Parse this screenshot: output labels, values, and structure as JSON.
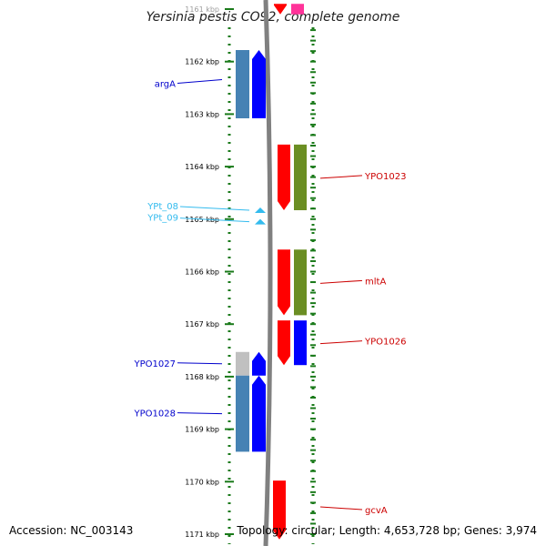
{
  "title": "Yersinia pestis CO92, complete genome",
  "footer": {
    "accession": "Accession: NC_003143",
    "topology": "Topology: circular; Length: 4,653,728 bp; Genes: 3,974"
  },
  "colors": {
    "scale_dots": "#1a7a1a",
    "backbone": "#808080",
    "blue_label": "#0000cc",
    "red_label": "#cc0000",
    "cyan_label": "#33bbee"
  },
  "scale": {
    "start_kbp": 1161,
    "end_kbp": 1171,
    "ticks": [
      {
        "kbp": 1161,
        "label": "1161 kbp"
      },
      {
        "kbp": 1162,
        "label": "1162 kbp"
      },
      {
        "kbp": 1163,
        "label": "1163 kbp"
      },
      {
        "kbp": 1164,
        "label": "1164 kbp"
      },
      {
        "kbp": 1165,
        "label": "1165 kbp"
      },
      {
        "kbp": 1166,
        "label": "1166 kbp"
      },
      {
        "kbp": 1167,
        "label": "1167 kbp"
      },
      {
        "kbp": 1168,
        "label": "1168 kbp"
      },
      {
        "kbp": 1169,
        "label": "1169 kbp"
      },
      {
        "kbp": 1170,
        "label": "1170 kbp"
      },
      {
        "kbp": 1171,
        "label": "1171 kbp"
      }
    ]
  },
  "features": [
    {
      "id": "f1",
      "strand": "forward",
      "start_kbp": 1160.9,
      "end_kbp": 1161.1,
      "color": "#ff0000",
      "kind": "gene"
    },
    {
      "id": "f2",
      "strand": "forward",
      "start_kbp": 1160.9,
      "end_kbp": 1161.1,
      "color": "#ff3399",
      "kind": "cds"
    },
    {
      "id": "argA",
      "strand": "reverse",
      "start_kbp": 1161.78,
      "end_kbp": 1163.08,
      "color": "#0000ff",
      "cds_color": "#4682b4",
      "label": "argA",
      "label_color": "#0000cc"
    },
    {
      "id": "YPO1023",
      "strand": "forward",
      "start_kbp": 1163.58,
      "end_kbp": 1164.83,
      "color": "#ff0000",
      "cds_color": "#6b8e23",
      "label": "YPO1023",
      "label_color": "#cc0000"
    },
    {
      "id": "mltA",
      "strand": "forward",
      "start_kbp": 1165.58,
      "end_kbp": 1166.83,
      "color": "#ff0000",
      "cds_color": "#6b8e23",
      "label": "mltA",
      "label_color": "#cc0000"
    },
    {
      "id": "YPO1026",
      "strand": "forward",
      "start_kbp": 1166.93,
      "end_kbp": 1167.78,
      "color": "#ff0000",
      "cds_color": "#0000ff",
      "label": "YPO1026",
      "label_color": "#cc0000"
    },
    {
      "id": "YPO1027",
      "strand": "reverse",
      "start_kbp": 1167.53,
      "end_kbp": 1167.98,
      "color": "#0000ff",
      "cds_color": "#c0c0c0",
      "label": "YPO1027",
      "label_color": "#0000cc"
    },
    {
      "id": "YPO1028",
      "strand": "reverse",
      "start_kbp": 1167.98,
      "end_kbp": 1169.43,
      "color": "#0000ff",
      "cds_color": "#4682b4",
      "label": "YPO1028",
      "label_color": "#0000cc"
    },
    {
      "id": "gcvA",
      "strand": "forward",
      "start_kbp": 1169.98,
      "end_kbp": 1171.1,
      "color": "#ff0000",
      "label": "gcvA",
      "label_color": "#cc0000"
    }
  ],
  "trna": [
    {
      "id": "YPt_08",
      "kbp": 1164.83,
      "label": "YPt_08",
      "color": "#33bbee"
    },
    {
      "id": "YPt_09",
      "kbp": 1165.05,
      "label": "YPt_09",
      "color": "#33bbee"
    }
  ]
}
